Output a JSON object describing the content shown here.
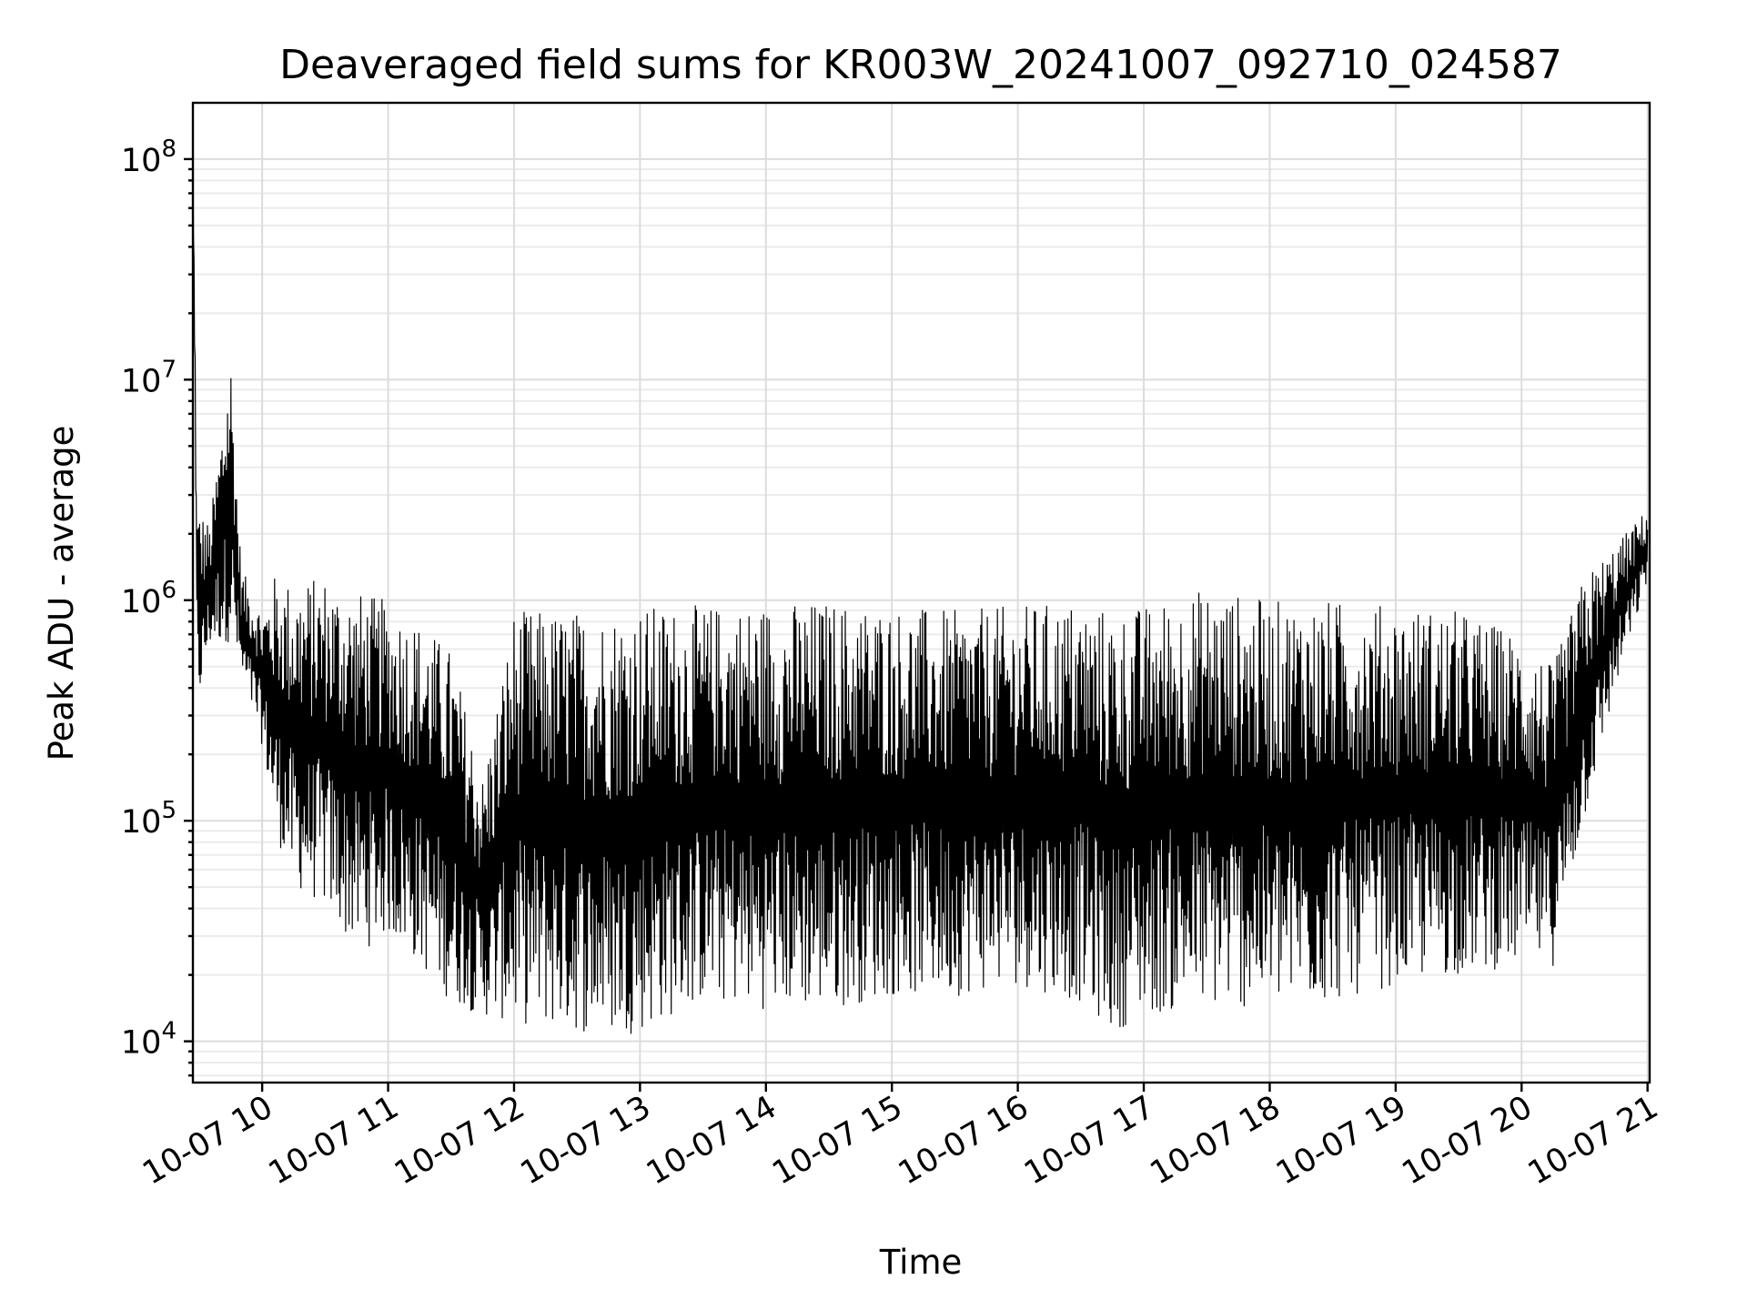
{
  "chart_data": {
    "type": "line",
    "title": "Deaveraged field sums for KR003W_20241007_092710_024587",
    "xlabel": "Time",
    "ylabel": "Peak ADU - average",
    "yscale": "log",
    "ylim": [
      6500,
      180000000
    ],
    "xlim": [
      "2024-10-07 09:27",
      "2024-10-07 21:01"
    ],
    "grid": true,
    "x_ticks": [
      {
        "value": "2024-10-07 10:00",
        "label": "10-07 10"
      },
      {
        "value": "2024-10-07 11:00",
        "label": "10-07 11"
      },
      {
        "value": "2024-10-07 12:00",
        "label": "10-07 12"
      },
      {
        "value": "2024-10-07 13:00",
        "label": "10-07 13"
      },
      {
        "value": "2024-10-07 14:00",
        "label": "10-07 14"
      },
      {
        "value": "2024-10-07 15:00",
        "label": "10-07 15"
      },
      {
        "value": "2024-10-07 16:00",
        "label": "10-07 16"
      },
      {
        "value": "2024-10-07 17:00",
        "label": "10-07 17"
      },
      {
        "value": "2024-10-07 18:00",
        "label": "10-07 18"
      },
      {
        "value": "2024-10-07 19:00",
        "label": "10-07 19"
      },
      {
        "value": "2024-10-07 20:00",
        "label": "10-07 20"
      },
      {
        "value": "2024-10-07 21:00",
        "label": "10-07 21"
      }
    ],
    "y_ticks": [
      {
        "value": 10000,
        "base": "10",
        "exp": "4"
      },
      {
        "value": 100000,
        "base": "10",
        "exp": "5"
      },
      {
        "value": 1000000,
        "base": "10",
        "exp": "6"
      },
      {
        "value": 10000000,
        "base": "10",
        "exp": "7"
      },
      {
        "value": 100000000,
        "base": "10",
        "exp": "8"
      }
    ],
    "series": [
      {
        "color": "#000000",
        "envelope": [
          {
            "x": "2024-10-07 09:27",
            "ymin": 90000000,
            "ymax": 105000000
          },
          {
            "x": "2024-10-07 09:29",
            "ymin": 300000,
            "ymax": 2800000
          },
          {
            "x": "2024-10-07 09:35",
            "ymin": 600000,
            "ymax": 2200000
          },
          {
            "x": "2024-10-07 09:45",
            "ymin": 650000,
            "ymax": 14000000
          },
          {
            "x": "2024-10-07 09:50",
            "ymin": 430000,
            "ymax": 1400000
          },
          {
            "x": "2024-10-07 10:00",
            "ymin": 220000,
            "ymax": 900000
          },
          {
            "x": "2024-10-07 10:06",
            "ymin": 90000,
            "ymax": 1300000
          },
          {
            "x": "2024-10-07 10:15",
            "ymin": 50000,
            "ymax": 1200000
          },
          {
            "x": "2024-10-07 10:30",
            "ymin": 40000,
            "ymax": 1300000
          },
          {
            "x": "2024-10-07 10:45",
            "ymin": 25000,
            "ymax": 1100000
          },
          {
            "x": "2024-10-07 11:00",
            "ymin": 30000,
            "ymax": 1000000
          },
          {
            "x": "2024-10-07 11:15",
            "ymin": 22000,
            "ymax": 800000
          },
          {
            "x": "2024-10-07 11:30",
            "ymin": 15000,
            "ymax": 600000
          },
          {
            "x": "2024-10-07 11:45",
            "ymin": 13000,
            "ymax": 160000
          },
          {
            "x": "2024-10-07 12:00",
            "ymin": 12000,
            "ymax": 900000
          },
          {
            "x": "2024-10-07 12:30",
            "ymin": 11000,
            "ymax": 900000
          },
          {
            "x": "2024-10-07 12:45",
            "ymin": 10500,
            "ymax": 900000
          },
          {
            "x": "2024-10-07 13:00",
            "ymin": 11000,
            "ymax": 950000
          },
          {
            "x": "2024-10-07 13:30",
            "ymin": 15000,
            "ymax": 950000
          },
          {
            "x": "2024-10-07 14:00",
            "ymin": 14000,
            "ymax": 980000
          },
          {
            "x": "2024-10-07 14:30",
            "ymin": 14000,
            "ymax": 1000000
          },
          {
            "x": "2024-10-07 15:00",
            "ymin": 16000,
            "ymax": 950000
          },
          {
            "x": "2024-10-07 15:30",
            "ymin": 16000,
            "ymax": 900000
          },
          {
            "x": "2024-10-07 16:00",
            "ymin": 18000,
            "ymax": 950000
          },
          {
            "x": "2024-10-07 16:30",
            "ymin": 15000,
            "ymax": 1000000
          },
          {
            "x": "2024-10-07 16:45",
            "ymin": 11000,
            "ymax": 900000
          },
          {
            "x": "2024-10-07 17:00",
            "ymin": 13000,
            "ymax": 950000
          },
          {
            "x": "2024-10-07 17:30",
            "ymin": 14000,
            "ymax": 1150000
          },
          {
            "x": "2024-10-07 18:00",
            "ymin": 14000,
            "ymax": 1000000
          },
          {
            "x": "2024-10-07 18:30",
            "ymin": 15000,
            "ymax": 1000000
          },
          {
            "x": "2024-10-07 19:00",
            "ymin": 18000,
            "ymax": 950000
          },
          {
            "x": "2024-10-07 19:30",
            "ymin": 20000,
            "ymax": 900000
          },
          {
            "x": "2024-10-07 20:00",
            "ymin": 22000,
            "ymax": 700000
          },
          {
            "x": "2024-10-07 20:15",
            "ymin": 22000,
            "ymax": 500000
          },
          {
            "x": "2024-10-07 20:30",
            "ymin": 100000,
            "ymax": 1300000
          },
          {
            "x": "2024-10-07 20:45",
            "ymin": 400000,
            "ymax": 1800000
          },
          {
            "x": "2024-10-07 21:00",
            "ymin": 1200000,
            "ymax": 2600000
          }
        ]
      }
    ]
  }
}
